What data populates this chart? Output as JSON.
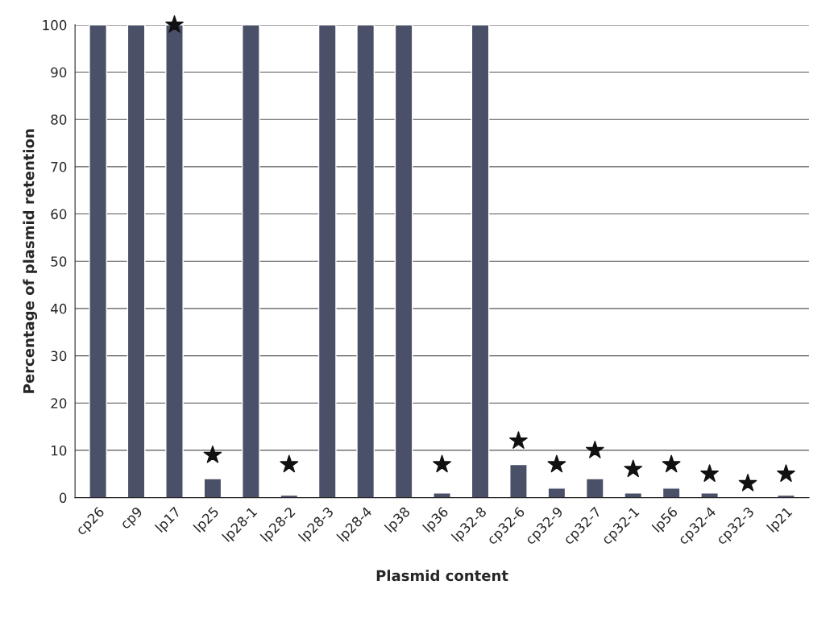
{
  "chart_data": {
    "type": "bar",
    "xlabel": "Plasmid content",
    "ylabel": "Percentage of plasmid retention",
    "categories": [
      "cp26",
      "cp9",
      "lp17",
      "lp25",
      "lp28-1",
      "lp28-2",
      "lp28-3",
      "lp28-4",
      "lp38",
      "lp36",
      "lp32-8",
      "cp32-6",
      "cp32-9",
      "cp32-7",
      "cp32-1",
      "lp56",
      "cp32-4",
      "cp32-3",
      "lp21"
    ],
    "series": [
      {
        "color": "#4a5068",
        "values": [
          100,
          100,
          100,
          4,
          100,
          0.5,
          100,
          100,
          100,
          1,
          100,
          7,
          2,
          4,
          1,
          2,
          1,
          null,
          0.5
        ]
      },
      {
        "type": "scatter",
        "marker": "star",
        "color": "#111111",
        "values": [
          null,
          null,
          100,
          9,
          null,
          7,
          null,
          null,
          null,
          7,
          null,
          12,
          7,
          10,
          6,
          7,
          5,
          3,
          5
        ]
      }
    ],
    "ylim": [
      0,
      100
    ],
    "yticks": [
      0,
      10,
      20,
      30,
      40,
      50,
      60,
      70,
      80,
      90,
      100
    ],
    "grid": "y",
    "legend": false
  }
}
